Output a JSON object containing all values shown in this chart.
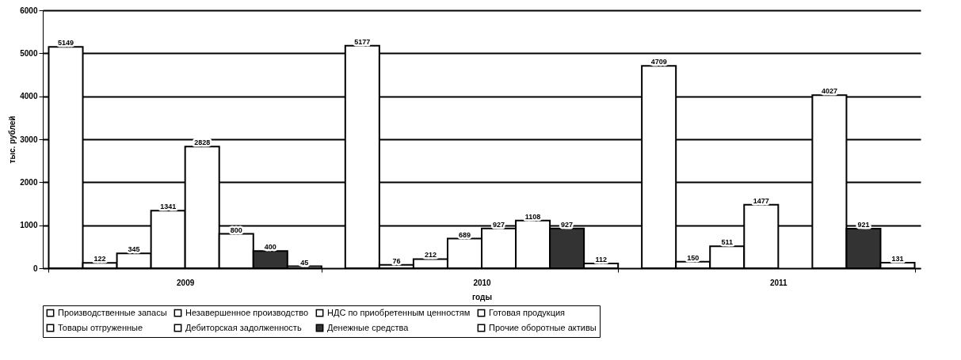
{
  "chart_data": {
    "type": "bar",
    "xlabel": "годы",
    "ylabel": "тыс. рублей",
    "categories": [
      "2009",
      "2010",
      "2011"
    ],
    "ylim": [
      0,
      6000
    ],
    "yticks": [
      0,
      1000,
      2000,
      3000,
      4000,
      5000,
      6000
    ],
    "grid": "y",
    "legend": "bottom",
    "data_labels": true,
    "series": [
      {
        "name": "Производственные запасы",
        "color": "#ffffff",
        "values": [
          5149,
          5177,
          4709
        ]
      },
      {
        "name": "Незавершенное производство",
        "color": "#ffffff",
        "values": [
          122,
          76,
          150
        ]
      },
      {
        "name": "НДС по приобретенным ценностям",
        "color": "#ffffff",
        "values": [
          345,
          212,
          511
        ]
      },
      {
        "name": "Готовая продукция",
        "color": "#ffffff",
        "values": [
          1341,
          689,
          1477
        ]
      },
      {
        "name": "Товары отгруженные",
        "color": "#ffffff",
        "values": [
          2828,
          927,
          null
        ]
      },
      {
        "name": "Дебиторская задолженность",
        "color": "#ffffff",
        "values": [
          800,
          1108,
          4027
        ]
      },
      {
        "name": "Денежные средства",
        "color": "#333333",
        "values": [
          400,
          927,
          921
        ]
      },
      {
        "name": "Прочие оборотные активы",
        "color": "#ffffff",
        "values": [
          45,
          112,
          131
        ]
      }
    ]
  }
}
